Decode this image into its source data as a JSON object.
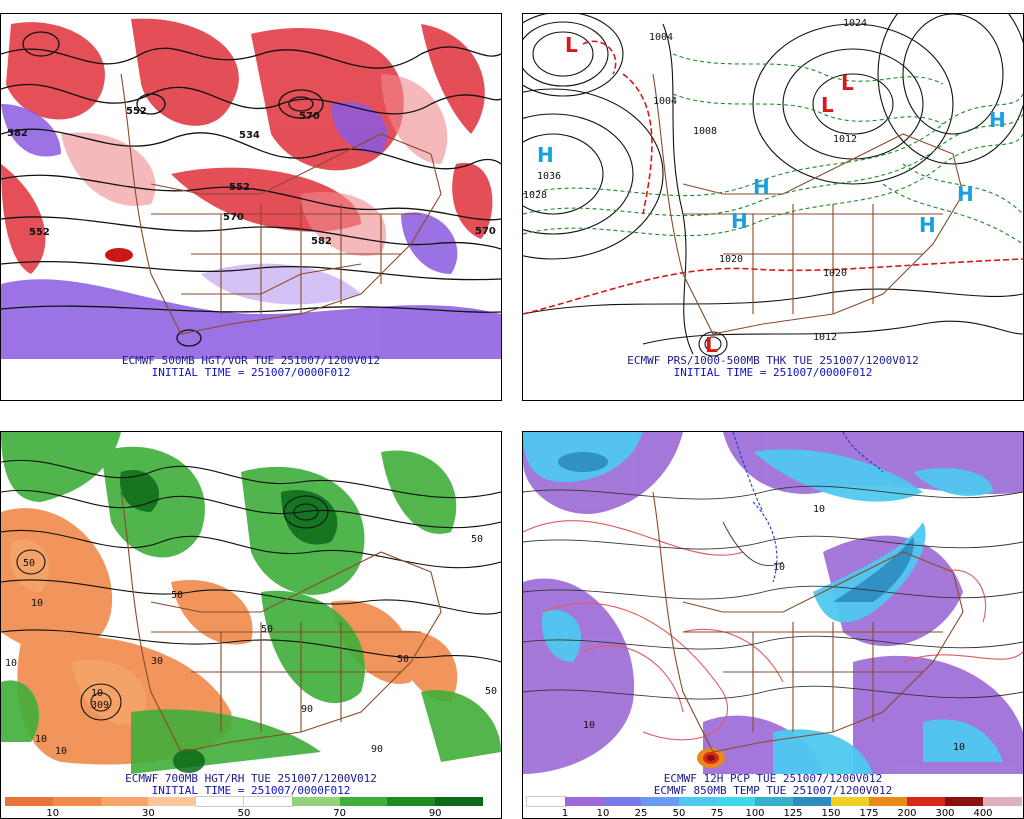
{
  "panels": {
    "p500": {
      "caption1": "ECMWF 500MB HGT/VOR TUE 251007/1200V012",
      "caption2": "INITIAL TIME = 251007/0000F012",
      "contour_labels": [
        "582",
        "534",
        "552",
        "552",
        "570",
        "582",
        "570",
        "570",
        "552"
      ]
    },
    "pmslp": {
      "caption1": "ECMWF PRS/1000-500MB THK TUE 251007/1200V012",
      "caption2": "INITIAL TIME = 251007/0000F012",
      "contour_labels": [
        "1004",
        "1036",
        "1028",
        "1008",
        "1012",
        "1020",
        "1020",
        "1012",
        "1004",
        "1024"
      ],
      "highs": [
        "H",
        "H",
        "H",
        "H",
        "H",
        "H"
      ],
      "lows": [
        "L",
        "L",
        "L",
        "L"
      ]
    },
    "p700": {
      "caption1": "ECMWF 700MB HGT/RH TUE 251007/1200V012",
      "caption2": "INITIAL TIME = 251007/0000F012",
      "contour_labels": [
        "50",
        "10",
        "10",
        "309",
        "10",
        "10",
        "50",
        "50",
        "90",
        "50",
        "30",
        "50",
        "90",
        "50",
        "10"
      ],
      "colorbar": {
        "ticks": [
          "10",
          "30",
          "50",
          "70",
          "90"
        ],
        "colors": [
          "#e8743a",
          "#f08a4b",
          "#f5a56a",
          "#fbc79a",
          "#ffffff",
          "#ffffff",
          "#93d27a",
          "#3fae3a",
          "#1e8a24",
          "#0b6a1a"
        ]
      }
    },
    "ppcp": {
      "caption1": "ECMWF 12H PCP TUE 251007/1200V012",
      "caption2": "ECMWF 850MB TEMP TUE 251007/1200V012",
      "contour_labels": [
        "10",
        "10",
        "10",
        "10"
      ],
      "colorbar": {
        "ticks": [
          "1",
          "10",
          "25",
          "50",
          "75",
          "100",
          "125",
          "150",
          "175",
          "200",
          "300",
          "400"
        ],
        "colors": [
          "#ffffff",
          "#9b6ad6",
          "#7a7ae6",
          "#6a9af0",
          "#4fc8f0",
          "#40d8e8",
          "#34b0c8",
          "#2e8cc0",
          "#f0d020",
          "#e88a1a",
          "#d82818",
          "#8a1010",
          "#e0b0c0"
        ]
      }
    }
  }
}
